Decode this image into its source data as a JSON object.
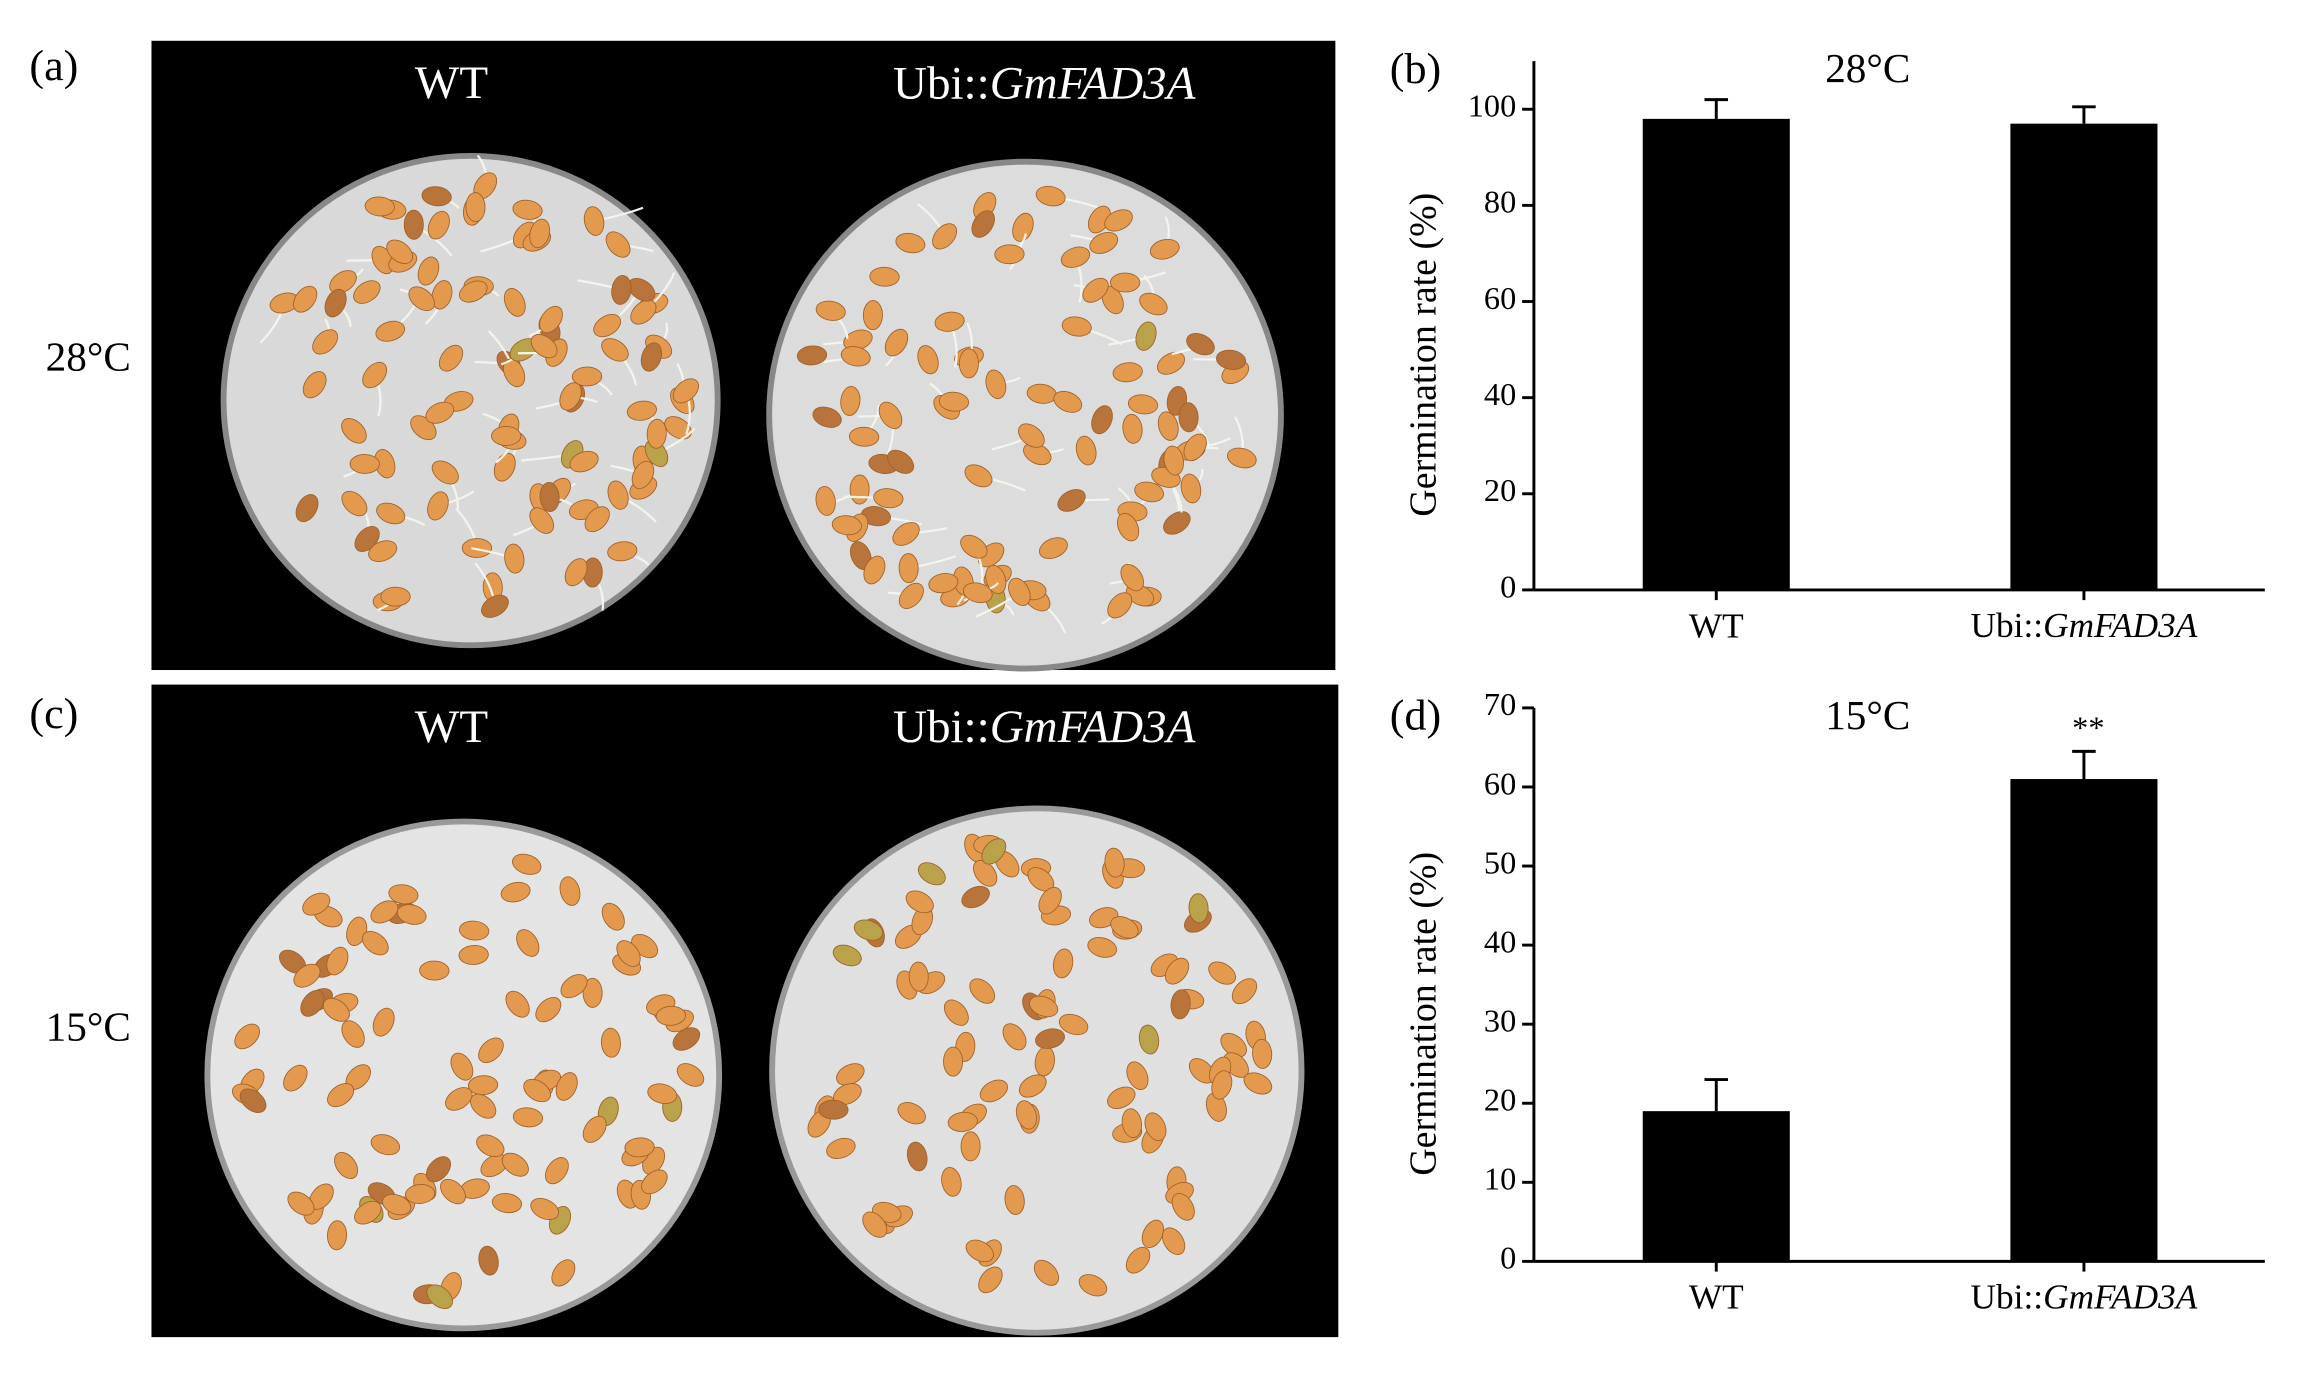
{
  "photos": [
    {
      "label": "(a)",
      "condition": "28°C",
      "columns": [
        "WT",
        "Ubi::GmFAD3A"
      ]
    },
    {
      "label": "(c)",
      "condition": "15°C",
      "columns": [
        "WT",
        "Ubi::GmFAD3A"
      ]
    }
  ],
  "chart_data": [
    {
      "type": "bar",
      "panel_label": "(b)",
      "title": "28°C",
      "y_label": "Germination rate (%)",
      "categories": [
        "WT",
        "Ubi::GmFAD3A"
      ],
      "values": [
        98,
        97
      ],
      "errors": [
        4,
        3.5
      ],
      "color": "#000000",
      "ylim": [
        0,
        110
      ],
      "yticks": [
        0,
        20,
        40,
        60,
        80,
        100
      ]
    },
    {
      "type": "bar",
      "panel_label": "(d)",
      "title": "15°C",
      "y_label": "Germination rate (%)",
      "categories": [
        "WT",
        "Ubi::GmFAD3A"
      ],
      "values": [
        19,
        61
      ],
      "errors": [
        4,
        3.5
      ],
      "color": "#000000",
      "significance": [
        null,
        "**"
      ],
      "ylim": [
        0,
        70
      ],
      "yticks": [
        0,
        10,
        20,
        30,
        40,
        50,
        60,
        70
      ]
    }
  ]
}
